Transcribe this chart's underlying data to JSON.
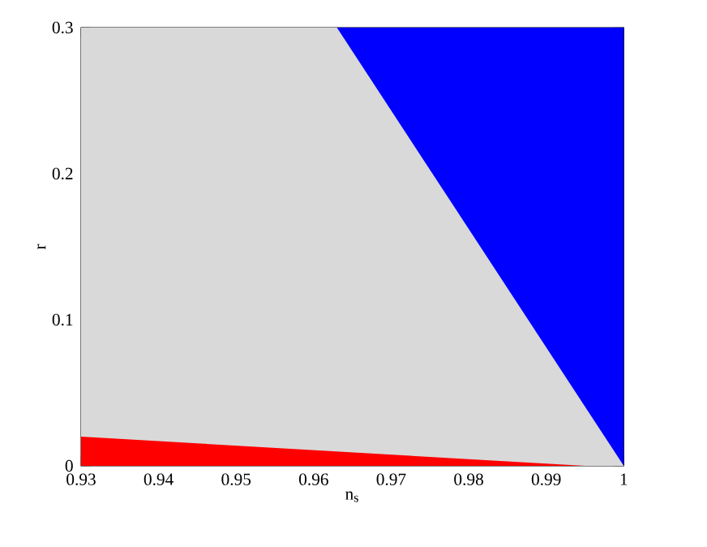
{
  "chart_data": {
    "type": "area",
    "xlabel": "n$_{s}$",
    "ylabel": "r",
    "xlim": [
      0.93,
      1
    ],
    "ylim": [
      0,
      0.3
    ],
    "xticks": [
      0.93,
      0.94,
      0.95,
      0.96,
      0.97,
      0.98,
      0.99,
      1
    ],
    "yticks": [
      0,
      0.1,
      0.2,
      0.3
    ],
    "series": [
      {
        "color": "#0000ff",
        "x": [
          0.963,
          1
        ],
        "values": [
          0.3,
          0.3
        ]
      },
      {
        "color": "#d9d9d9",
        "x": [
          0.93,
          0.963,
          1
        ],
        "values": [
          0.3,
          0.3,
          0
        ]
      },
      {
        "color": "#ff0000",
        "x": [
          0.93,
          0.995
        ],
        "values": [
          0.02,
          0
        ]
      }
    ]
  }
}
